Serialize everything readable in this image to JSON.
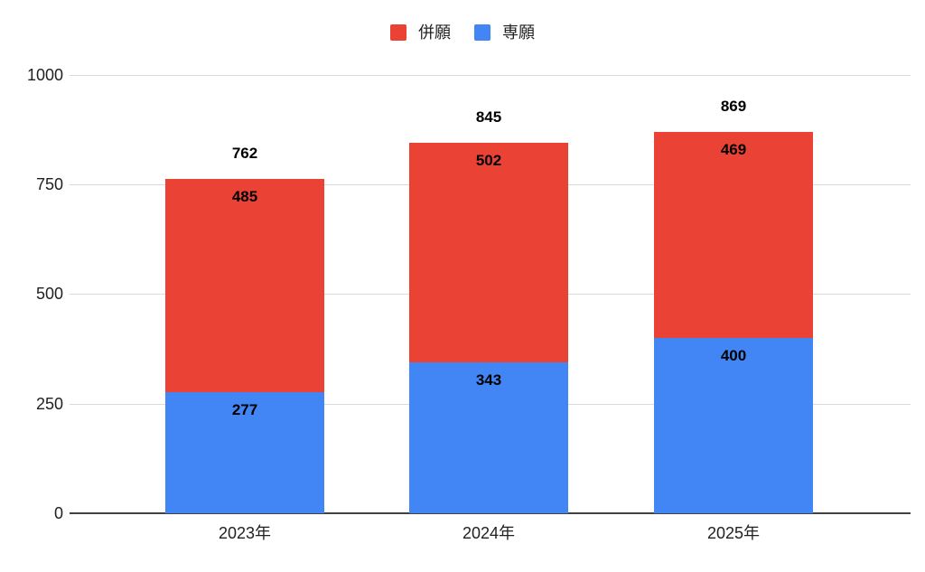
{
  "chart_data": {
    "type": "bar",
    "stacked": true,
    "title": "",
    "categories": [
      "2023年",
      "2024年",
      "2025年"
    ],
    "series": [
      {
        "name": "専願",
        "color": "#4285F4",
        "values": [
          277,
          343,
          400
        ]
      },
      {
        "name": "併願",
        "color": "#EA4335",
        "values": [
          485,
          502,
          469
        ]
      }
    ],
    "totals": [
      762,
      845,
      869
    ],
    "legend": [
      {
        "label": "併願",
        "color": "#EA4335"
      },
      {
        "label": "専願",
        "color": "#4285F4"
      }
    ],
    "legend_position": "top",
    "grid": true,
    "ylim": [
      0,
      1000
    ],
    "yticks": [
      0,
      250,
      500,
      750,
      1000
    ],
    "colors": {
      "grid": "#dadada",
      "axis_line": "#424242",
      "tick_text": "#212121",
      "data_label": "#000000"
    }
  }
}
